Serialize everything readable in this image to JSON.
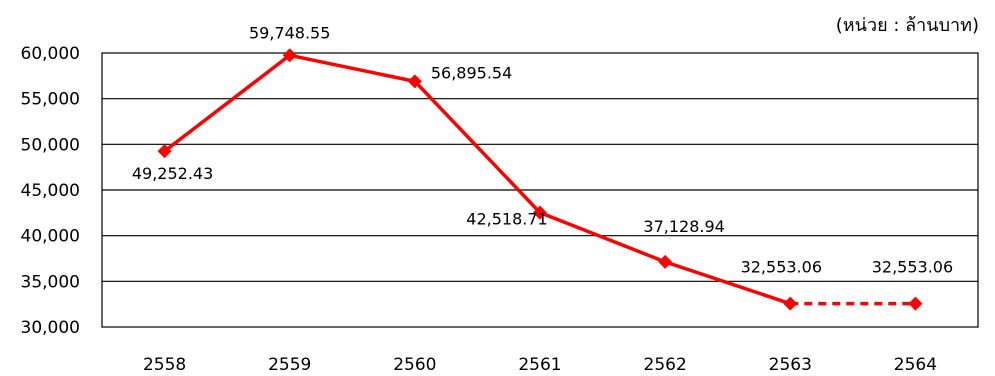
{
  "chart_data": {
    "type": "line",
    "title": "",
    "unit_label": "(หน่วย : ล้านบาท)",
    "xlabel": "",
    "ylabel": "",
    "categories": [
      "2558",
      "2559",
      "2560",
      "2561",
      "2562",
      "2563",
      "2564"
    ],
    "series": [
      {
        "values": [
          49252.43,
          59748.55,
          56895.54,
          42518.71,
          37128.94,
          32553.06,
          32553.06
        ],
        "value_labels": [
          "49,252.43",
          "59,748.55",
          "56,895.54",
          "42,518.71",
          "37,128.94",
          "32,553.06",
          "32,553.06"
        ],
        "color": "#ff0000",
        "dashed_from_index": 5
      }
    ],
    "yticks": [
      30000,
      35000,
      40000,
      45000,
      50000,
      55000,
      60000
    ],
    "ytick_labels": [
      "30,000",
      "35,000",
      "40,000",
      "45,000",
      "50,000",
      "55,000",
      "60,000"
    ],
    "ylim": [
      30000,
      60000
    ],
    "grid": "horizontal",
    "gridline_color": "#000000",
    "legend": "none"
  }
}
